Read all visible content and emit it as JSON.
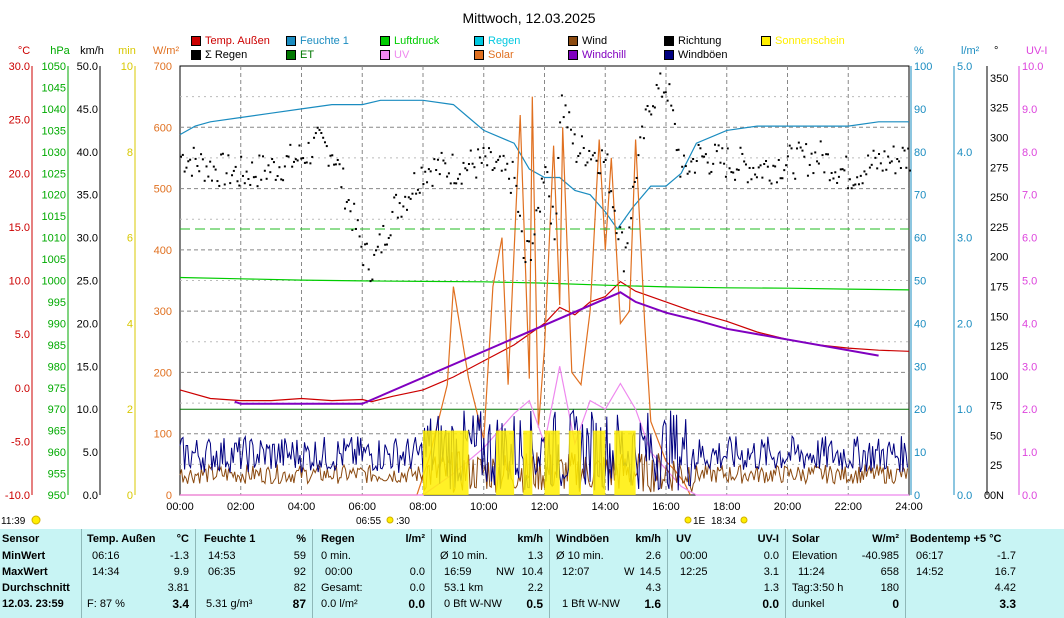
{
  "chart_data": {
    "type": "line",
    "title": "Mittwoch, 12.03.2025",
    "x_ticks": [
      "00:00",
      "02:00",
      "04:00",
      "06:00",
      "08:00",
      "10:00",
      "12:00",
      "14:00",
      "16:00",
      "18:00",
      "20:00",
      "22:00",
      "24:00"
    ],
    "axes_left": [
      {
        "unit": "°C",
        "color": "#cc0000",
        "ticks": [
          "30.0",
          "25.0",
          "20.0",
          "15.0",
          "10.0",
          "5.0",
          "0.0",
          "-5.0",
          "-10.0"
        ],
        "range": [
          -10,
          30
        ]
      },
      {
        "unit": "hPa",
        "color": "#00aa00",
        "ticks": [
          "1050",
          "1045",
          "1040",
          "1035",
          "1030",
          "1025",
          "1020",
          "1015",
          "1010",
          "1005",
          "1000",
          "995",
          "990",
          "985",
          "980",
          "975",
          "970",
          "965",
          "960",
          "955",
          "950"
        ],
        "range": [
          950,
          1050
        ]
      },
      {
        "unit": "km/h",
        "color": "#000000",
        "ticks": [
          "50.0",
          "45.0",
          "40.0",
          "35.0",
          "30.0",
          "25.0",
          "20.0",
          "15.0",
          "10.0",
          "5.0",
          "0.0"
        ],
        "range": [
          0,
          50
        ]
      },
      {
        "unit": "min",
        "color": "#d8c800",
        "ticks": [
          "10",
          "8",
          "6",
          "4",
          "2",
          "0"
        ],
        "range": [
          0,
          10
        ]
      },
      {
        "unit": "W/m²",
        "color": "#e07020",
        "ticks": [
          "700",
          "600",
          "500",
          "400",
          "300",
          "200",
          "100",
          "0"
        ],
        "range": [
          0,
          700
        ]
      }
    ],
    "axes_right": [
      {
        "unit": "%",
        "color": "#1a8cc0",
        "ticks": [
          "100",
          "90",
          "80",
          "70",
          "60",
          "50",
          "40",
          "30",
          "20",
          "10",
          "0"
        ],
        "range": [
          0,
          100
        ]
      },
      {
        "unit": "l/m²",
        "color": "#1a8cc0",
        "ticks": [
          "5.0",
          "4.0",
          "3.0",
          "2.0",
          "1.0",
          "0.0"
        ],
        "range": [
          0,
          5
        ]
      },
      {
        "unit": "°",
        "color": "#000000",
        "ticks": [
          "350",
          "325",
          "300",
          "275",
          "250",
          "225",
          "200",
          "175",
          "150",
          "125",
          "100",
          "75",
          "50",
          "25",
          "0"
        ],
        "range": [
          0,
          360
        ],
        "zero_label": "N"
      },
      {
        "unit": "UV-I",
        "color": "#dd44dd",
        "ticks": [
          "10.0",
          "9.0",
          "8.0",
          "7.0",
          "6.0",
          "5.0",
          "4.0",
          "3.0",
          "2.0",
          "1.0",
          "0.0"
        ],
        "range": [
          0,
          10
        ]
      }
    ],
    "legend": [
      {
        "name": "Temp. Außen",
        "color": "#cc0000"
      },
      {
        "name": "Feuchte 1",
        "color": "#1a8cc0"
      },
      {
        "name": "Luftdruck",
        "color": "#00cc00"
      },
      {
        "name": "Regen",
        "color": "#00c8e0"
      },
      {
        "name": "Wind",
        "color": "#8b4a10"
      },
      {
        "name": "Richtung",
        "color": "#000000"
      },
      {
        "name": "Sonnenschein",
        "color": "#ffee00"
      },
      {
        "name": "Σ Regen",
        "color": "#000000"
      },
      {
        "name": "ET",
        "color": "#007700"
      },
      {
        "name": "UV",
        "color": "#ee88ee"
      },
      {
        "name": "Solar",
        "color": "#e07020"
      },
      {
        "name": "Windchill",
        "color": "#8000c0"
      },
      {
        "name": "Windböen",
        "color": "#000080"
      }
    ],
    "series": [
      {
        "name": "Temp. Außen",
        "axis": "°C",
        "x": [
          0,
          1,
          2,
          3,
          4,
          5,
          6,
          6.3,
          7,
          8,
          9,
          10,
          11,
          12,
          12.5,
          13,
          13.5,
          14,
          14.5,
          15,
          16,
          17,
          18,
          19,
          20,
          21,
          22,
          23,
          24
        ],
        "values": [
          -0.2,
          -1.0,
          -1.2,
          -1.2,
          -1.0,
          -1.2,
          -1.1,
          -1.3,
          -0.8,
          -0.2,
          1.0,
          2.5,
          4.0,
          6.0,
          7.5,
          6.8,
          8.0,
          8.5,
          9.9,
          9.0,
          8.0,
          7.0,
          6.2,
          5.2,
          4.5,
          4.0,
          3.7,
          3.5,
          3.4
        ]
      },
      {
        "name": "Feuchte 1",
        "axis": "%",
        "x": [
          0,
          0.5,
          1,
          2,
          3,
          4,
          5,
          6,
          6.6,
          7,
          8,
          9,
          9.5,
          10,
          11,
          11.5,
          12,
          12.5,
          13,
          13.5,
          14,
          14.4,
          14.9,
          15.5,
          16,
          16.5,
          17,
          18,
          19,
          20,
          21,
          22,
          23,
          24
        ],
        "values": [
          84,
          86,
          87,
          88,
          89,
          90,
          91,
          91,
          92,
          92,
          92,
          91,
          88,
          85,
          82,
          76,
          74,
          74,
          71,
          70,
          66,
          62,
          67,
          72,
          72,
          75,
          82,
          85,
          86,
          86,
          86,
          86,
          87,
          87
        ]
      },
      {
        "name": "Luftdruck",
        "axis": "hPa",
        "x": [
          0,
          2,
          4,
          6,
          8,
          10,
          12,
          14,
          16,
          18,
          20,
          22,
          24
        ],
        "values": [
          1000.7,
          1000.4,
          1000.1,
          999.9,
          999.8,
          999.7,
          999.4,
          998.9,
          998.5,
          998.3,
          998.2,
          998.0,
          997.8
        ]
      },
      {
        "name": "ET",
        "axis": "l/m²",
        "x": [
          0,
          24
        ],
        "values": [
          1.0,
          1.0
        ]
      },
      {
        "name": "Solar",
        "axis": "W/m²",
        "x": [
          0,
          7.8,
          8.2,
          8.8,
          9,
          9.5,
          10,
          10.3,
          10.6,
          10.8,
          11.2,
          11.5,
          11.6,
          11.8,
          12,
          12.3,
          12.5,
          12.6,
          12.9,
          13.2,
          13.5,
          13.8,
          14,
          14.2,
          14.5,
          14.8,
          15,
          15.3,
          15.5,
          16,
          16.3,
          16.6,
          16.8
        ],
        "values": [
          0,
          0,
          60,
          180,
          340,
          190,
          90,
          340,
          420,
          180,
          620,
          190,
          650,
          110,
          240,
          570,
          310,
          600,
          200,
          180,
          300,
          580,
          400,
          550,
          280,
          300,
          580,
          280,
          120,
          55,
          40,
          20,
          0
        ]
      },
      {
        "name": "UV",
        "axis": "UV-I",
        "x": [
          0,
          8,
          9,
          10,
          11,
          11.5,
          12,
          12.5,
          13,
          13.5,
          14,
          14.5,
          15,
          15.5,
          16,
          16.5,
          17,
          24
        ],
        "values": [
          0,
          0,
          0.5,
          1.1,
          1.9,
          2.2,
          1.2,
          3.0,
          1.2,
          2.2,
          2.0,
          2.6,
          2.0,
          1.0,
          0.6,
          0.2,
          0,
          0
        ]
      },
      {
        "name": "Windchill",
        "axis": "°C",
        "x": [
          1.8,
          2.0,
          5.0,
          6.0,
          14.5,
          15.0,
          16.0,
          17.0,
          18.0,
          23.0
        ],
        "values": [
          -1.3,
          -1.5,
          -1.5,
          -1.5,
          8.9,
          8.0,
          7.0,
          6.3,
          5.5,
          3.0
        ]
      },
      {
        "name": "Richtung",
        "axis": "°",
        "x": [
          0,
          1,
          2,
          3,
          4,
          4.5,
          5,
          6,
          6.3,
          7,
          7.5,
          8,
          9,
          10,
          11,
          11.3,
          11.7,
          12,
          12.3,
          12.5,
          13,
          13.5,
          14,
          14.3,
          14.6,
          15,
          15.5,
          16,
          16.5,
          17,
          18,
          19,
          20,
          21,
          22,
          23,
          24
        ],
        "values": [
          285,
          275,
          270,
          275,
          285,
          295,
          290,
          205,
          192,
          240,
          255,
          275,
          275,
          280,
          265,
          195,
          225,
          285,
          215,
          335,
          290,
          290,
          280,
          240,
          200,
          275,
          335,
          345,
          270,
          285,
          280,
          275,
          280,
          285,
          270,
          280,
          285
        ]
      },
      {
        "name": "Wind",
        "axis": "km/h",
        "x": [
          0,
          24
        ],
        "values": [
          2.2,
          2.2
        ]
      },
      {
        "name": "Windböen",
        "axis": "km/h",
        "x": [
          0,
          24
        ],
        "values": [
          4.3,
          4.3
        ]
      }
    ],
    "grid": true,
    "legend_position": "top"
  },
  "chart_labels": {
    "sun_left": "11:39",
    "sunrise": "06:55",
    "sunrise_frag": ":30",
    "sunset_frag": "1E",
    "sunset": "18:34"
  },
  "stats": {
    "sensor_col": {
      "header": "Sensor",
      "rows": [
        "MinWert",
        "MaxWert",
        "Durchschnitt"
      ],
      "date": "12.03.  23:59"
    },
    "temp": {
      "title": "Temp. Außen",
      "unit": "°C",
      "min_t": "06:16",
      "min_v": "-1.3",
      "max_t": "14:34",
      "max_v": "9.9",
      "avg": "3.81",
      "feel": "F: 87 %",
      "cur": "3.4"
    },
    "feuchte": {
      "title": "Feuchte 1",
      "unit": "%",
      "min_t": "14:53",
      "min_v": "59",
      "max_t": "06:35",
      "max_v": "92",
      "avg": "82",
      "abs": "5.31 g/m³",
      "cur": "87"
    },
    "regen": {
      "title": "Regen",
      "unit": "l/m²",
      "r1_l": "0 min.",
      "r1_v": "",
      "r2_l": "00:00",
      "r2_v": "0.0",
      "r3_l": "Gesamt:",
      "r3_v": "0.0",
      "r4_l": "0.0 l/m²",
      "r4_v": "0.0",
      "r1_v2": "0.0"
    },
    "wind": {
      "title": "Wind",
      "unit": "km/h",
      "r1_l": "Ø 10 min.",
      "r1_v": "1.3",
      "r2_l": "16:59",
      "r2_m": "NW",
      "r2_v": "10.4",
      "r3_l": "53.1 km",
      "r3_v": "2.2",
      "r4_l": "0 Bft W-NW",
      "r4_v": "0.5"
    },
    "boeen": {
      "title": "Windböen",
      "unit": "km/h",
      "r1_l": "Ø 10 min.",
      "r1_v": "2.6",
      "r2_l": "12:07",
      "r2_m": "W",
      "r2_v": "14.5",
      "r3_v": "4.3",
      "r4_l": "1 Bft W-NW",
      "r4_v": "1.6"
    },
    "uv": {
      "title": "UV",
      "unit": "UV-I",
      "r1_l": "00:00",
      "r1_v": "0.0",
      "r2_l": "12:25",
      "r2_v": "3.1",
      "r3_v": "1.3",
      "r4_v": "0.0"
    },
    "solar": {
      "title": "Solar",
      "unit": "W/m²",
      "r1_l": "Elevation",
      "r1_v": "-40.985",
      "r2_l": "11:24",
      "r2_v": "658",
      "r3_l": "Tag:3:50 h",
      "r3_v": "180",
      "r4_l": "dunkel",
      "r4_v": "0"
    },
    "boden": {
      "title": "Bodentemp +5  °C",
      "r1_l": "06:17",
      "r1_v": "-1.7",
      "r2_l": "14:52",
      "r2_v": "16.7",
      "r3_v": "4.42",
      "r4_v": "3.3"
    }
  }
}
